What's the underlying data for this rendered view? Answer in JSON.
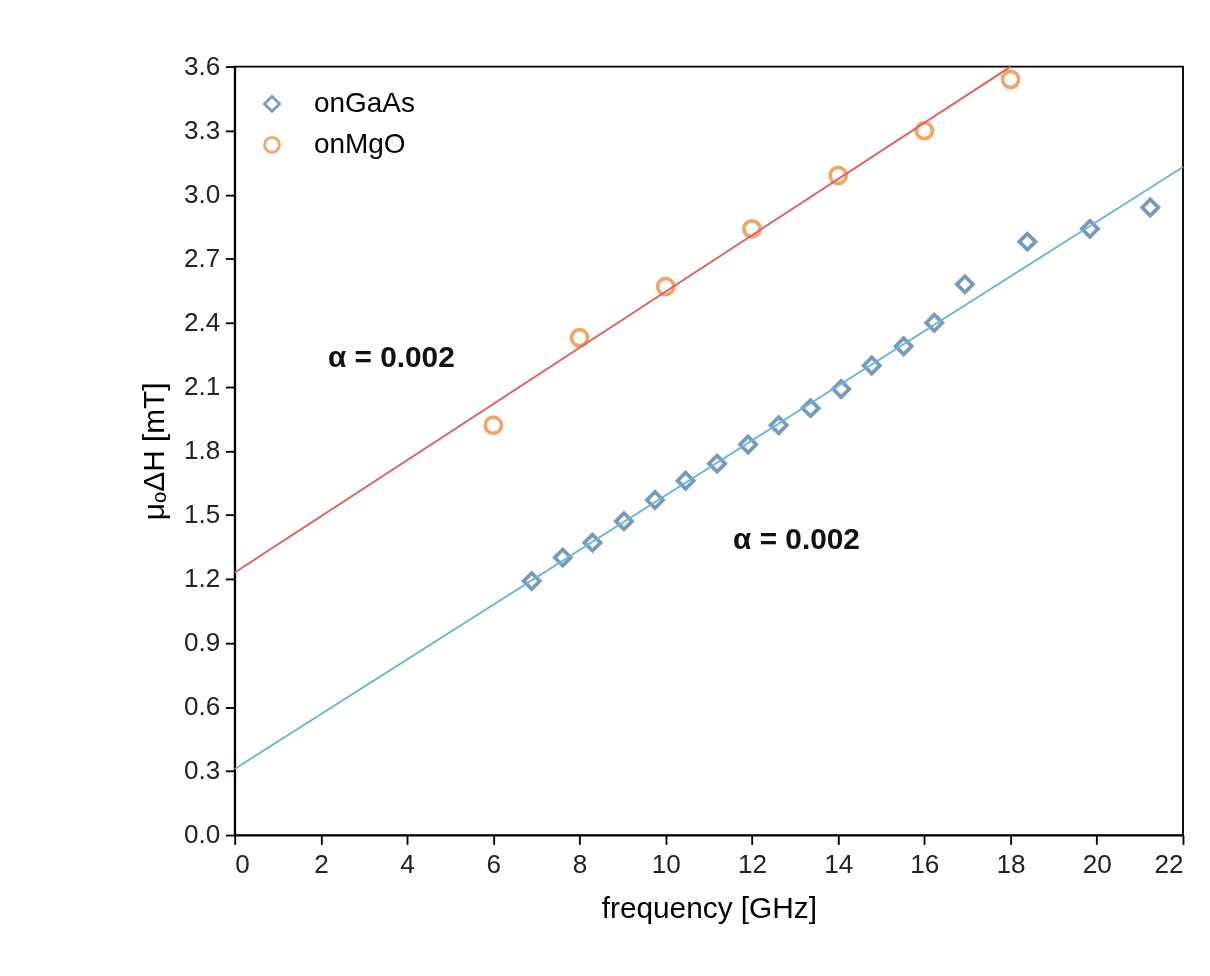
{
  "chart_data": {
    "type": "scatter",
    "xlabel": "frequency [GHz]",
    "ylabel": "μₒΔH [mT]",
    "xlim": [
      0,
      22
    ],
    "xticks": [
      0,
      2,
      4,
      6,
      8,
      10,
      12,
      14,
      16,
      18,
      20,
      22
    ],
    "ylim": [
      0,
      3.6
    ],
    "yticks": [
      {
        "value": 0,
        "label": "0.0"
      },
      0.3,
      0.6,
      0.9,
      1.2,
      1.5,
      1.8,
      2.1,
      2.4,
      2.7,
      {
        "value": 3,
        "label": "3.0"
      },
      3.3,
      3.6
    ],
    "grid": false,
    "legend": "top left",
    "annotations": [
      "α = 0.002",
      "α = 0.002"
    ],
    "series": [
      {
        "name": "onGaAs",
        "marker": "diamond",
        "color": "#3d6fa0",
        "x": [
          6.89,
          7.61,
          8.3,
          9.03,
          9.75,
          10.46,
          11.19,
          11.91,
          12.62,
          13.36,
          14.07,
          14.78,
          15.52,
          16.23,
          16.94,
          18.39,
          19.84,
          21.24
        ],
        "values": [
          1.19,
          1.3,
          1.37,
          1.47,
          1.57,
          1.66,
          1.74,
          1.83,
          1.92,
          2.0,
          2.09,
          2.2,
          2.29,
          2.4,
          2.58,
          2.78,
          2.84,
          2.94
        ]
      },
      {
        "name": "onMgO",
        "marker": "circle",
        "color": "#e8832a",
        "x": [
          6,
          8,
          10,
          12,
          14,
          16,
          18
        ],
        "values": [
          1.92,
          2.33,
          2.57,
          2.84,
          3.09,
          3.3,
          3.54
        ]
      },
      {
        "type": "line",
        "marker": "none",
        "color": "#e06060",
        "x": [
          0,
          18
        ],
        "values": [
          1.23,
          3.6
        ]
      },
      {
        "type": "line",
        "marker": "none",
        "color": "#6cb4e0",
        "x": [
          0,
          22
        ],
        "values": [
          0.31,
          3.13
        ]
      }
    ]
  }
}
